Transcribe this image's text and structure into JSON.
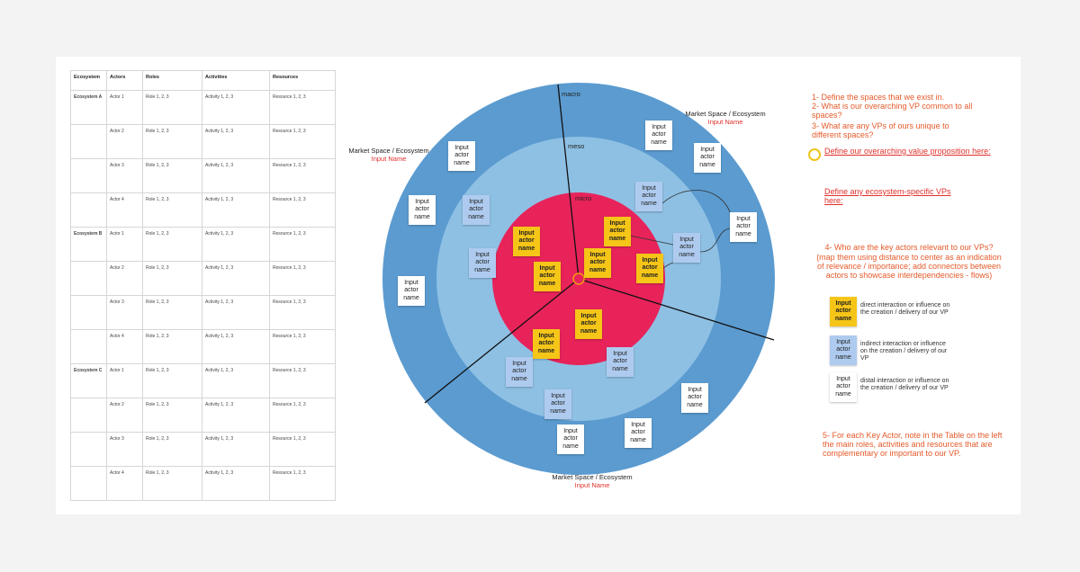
{
  "table": {
    "columns": [
      "Ecosystem",
      "Actors",
      "Roles",
      "Activities",
      "Resources"
    ],
    "rows": [
      [
        "Ecosystem A",
        "Actor 1",
        "Role 1, 2, 3",
        "Activity 1, 2, 3",
        "Resource 1, 2, 3"
      ],
      [
        null,
        "Actor 2",
        "Role 1, 2, 3",
        "Activity 1, 2, 3",
        "Resource 1, 2, 3"
      ],
      [
        null,
        "Actor 3",
        "Role 1, 2, 3",
        "Activity 1, 2, 3",
        "Resource 1, 2, 3"
      ],
      [
        null,
        "Actor 4",
        "Role 1, 2, 3",
        "Activity 1, 2, 3",
        "Resource 1, 2, 3"
      ],
      [
        "Ecosystem B",
        "Actor 1",
        "Role 1, 2, 3",
        "Activity 1, 2, 3",
        "Resource 1, 2, 3"
      ],
      [
        null,
        "Actor 2",
        "Role 1, 2, 3",
        "Activity 1, 2, 3",
        "Resource 1, 2, 3"
      ],
      [
        null,
        "Actor 3",
        "Role 1, 2, 3",
        "Activity 1, 2, 3",
        "Resource 1, 2, 3"
      ],
      [
        null,
        "Actor 4",
        "Role 1, 2, 3",
        "Activity 1, 2, 3",
        "Resource 1, 2, 3"
      ],
      [
        "Ecosystem C",
        "Actor 1",
        "Role 1, 2, 3",
        "Activity 1, 2, 3",
        "Resource 1, 2, 3"
      ],
      [
        null,
        "Actor 2",
        "Role 1, 2, 3",
        "Activity 1, 2, 3",
        "Resource 1, 2, 3"
      ],
      [
        null,
        "Actor 3",
        "Role 1, 2, 3",
        "Activity 1, 2, 3",
        "Resource 1, 2, 3"
      ],
      [
        null,
        "Actor 4",
        "Role 1, 2, 3",
        "Activity 1, 2, 3",
        "Resource 1, 2, 3"
      ]
    ]
  },
  "diagram": {
    "rings": [
      "macro",
      "meso",
      "micro"
    ],
    "market_spaces": [
      {
        "label": "Market Space / Ecosystem",
        "name": "Input Name"
      },
      {
        "label": "Market Space / Ecosystem",
        "name": "Input Name"
      },
      {
        "label": "Market Space / Ecosystem",
        "name": "Input Name"
      }
    ],
    "direct_actors": [
      "Input actor name",
      "Input actor name",
      "Input actor name",
      "Input actor name",
      "Input actor name",
      "Input actor name",
      "Input actor name"
    ],
    "indirect_actors": [
      "Input actor name",
      "Input actor name",
      "Input actor name",
      "Input actor name",
      "Input actor name",
      "Input actor name",
      "Input actor name"
    ],
    "distal_actors": [
      "Input actor name",
      "Input actor name",
      "Input actor name",
      "Input actor name",
      "Input actor name",
      "Input actor name",
      "Input actor name",
      "Input actor name",
      "Input actor name"
    ]
  },
  "instructions": {
    "step_1": "1- Define the spaces that we exist in.",
    "step_2": "2- What is our overarching VP common to all spaces?",
    "step_3": "3- What are any VPs of ours unique to different spaces?",
    "overarching_vp": "Define our overarching value proposition here:",
    "ecosystem_vps": "Define any ecosystem-specific VPs here:",
    "step_4": "4- Who are the key actors relevant to our VPs?",
    "step_4_hint": "(map them using distance to center as an indication of relevance / importance; add connectors between actors to showcase interdependencies - flows)",
    "step_5": "5- For each Key Actor, note in the Table on the left the main roles, activities and resources that are complementary or important to our VP."
  },
  "legend": [
    {
      "note": "Input actor name",
      "text": "direct interaction or influence on the creation / delivery of our VP"
    },
    {
      "note": "Input actor name",
      "text": "indirect interaction or influence on the creation / delivery of our VP"
    },
    {
      "note": "Input actor name",
      "text": "distal interaction or influence on the creation / delivery of our VP"
    }
  ]
}
